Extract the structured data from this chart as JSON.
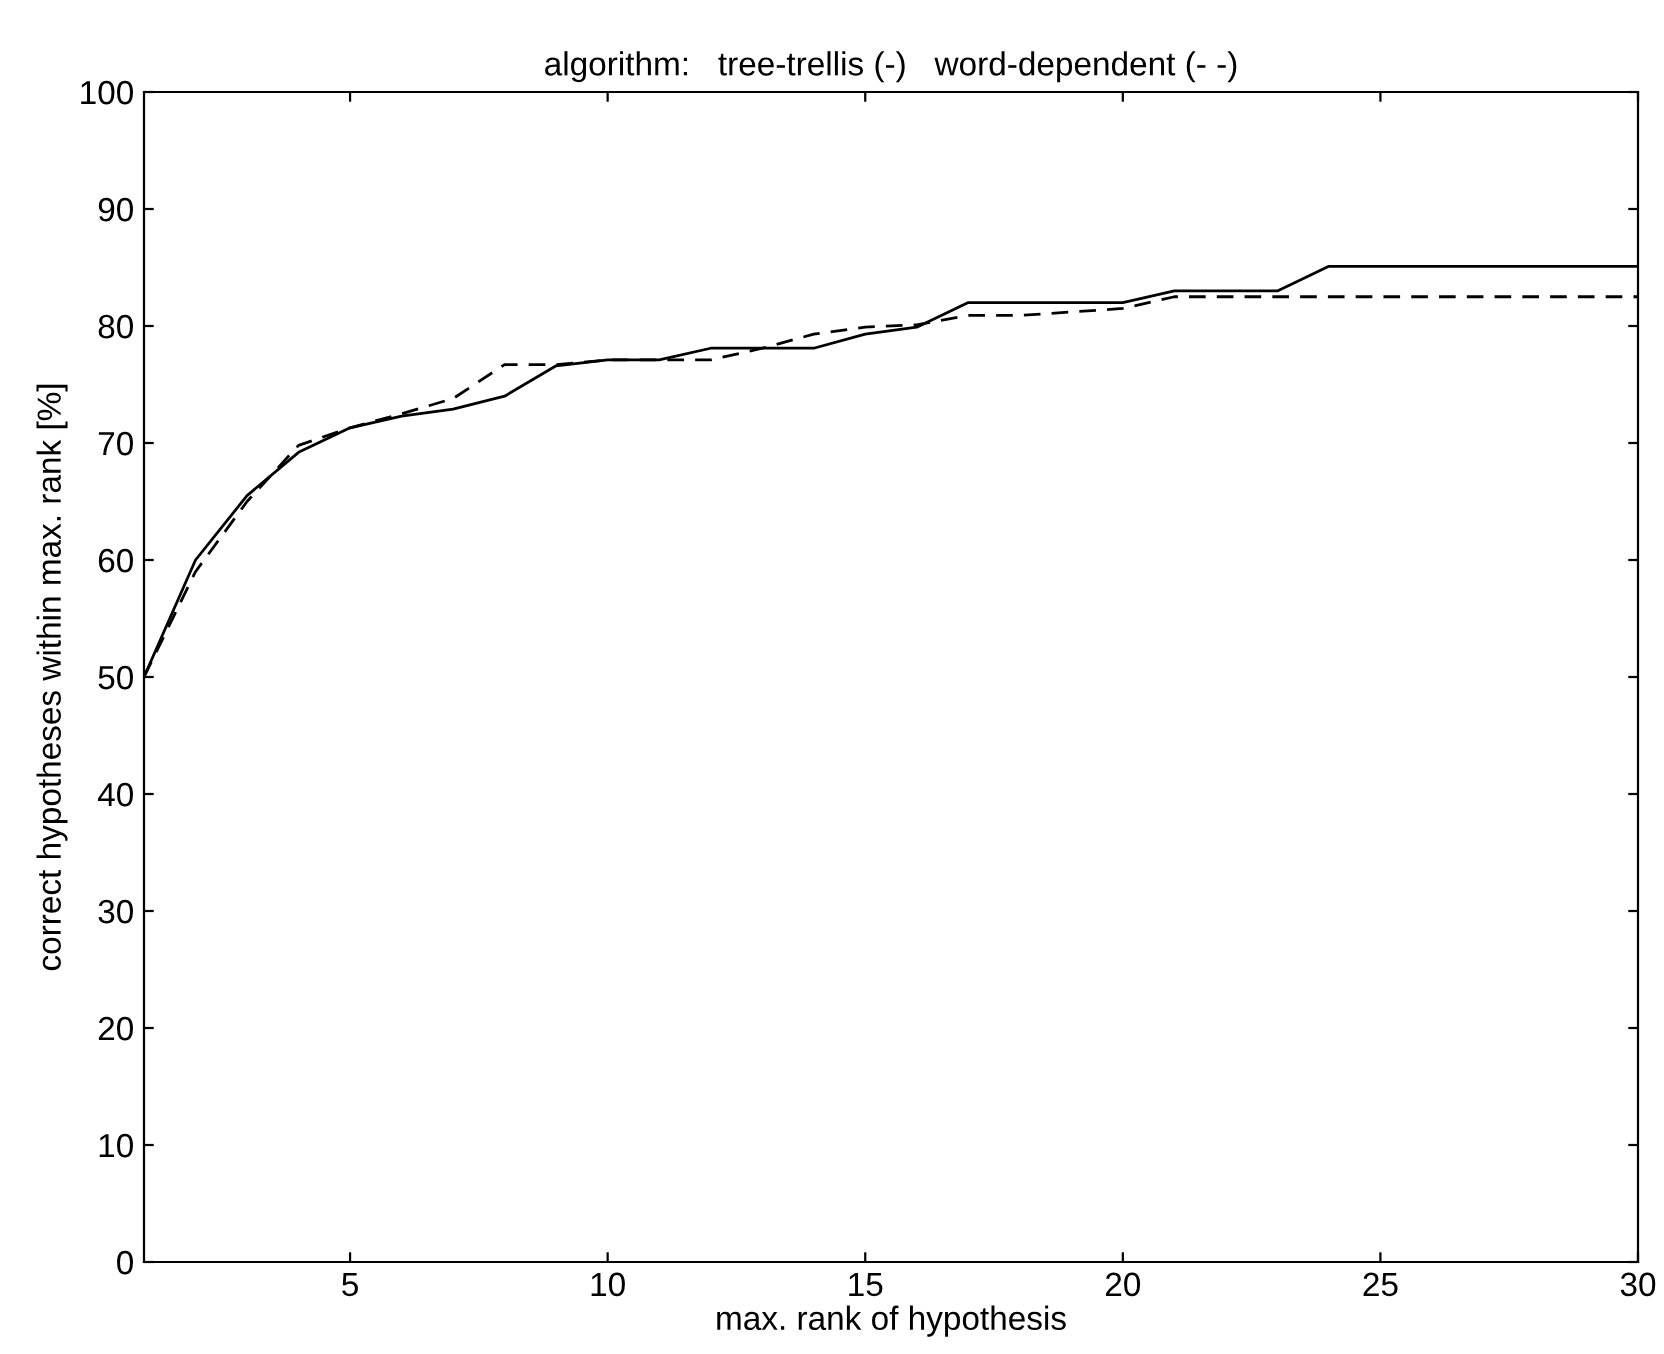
{
  "chart_data": {
    "type": "line",
    "title": "algorithm:   tree-trellis (-)   word-dependent (- -)",
    "xlabel": "max. rank of hypothesis",
    "ylabel": "correct hypotheses within max. rank [%]",
    "x": [
      1,
      2,
      3,
      4,
      5,
      6,
      7,
      8,
      9,
      10,
      11,
      12,
      13,
      14,
      15,
      16,
      17,
      18,
      19,
      20,
      21,
      22,
      23,
      24,
      25,
      26,
      27,
      28,
      29,
      30
    ],
    "series": [
      {
        "color": "#000000",
        "line_style": "solid",
        "values": [
          50,
          60,
          65.5,
          69.2,
          71.3,
          72.3,
          72.9,
          74,
          76.6,
          77.1,
          77.1,
          78.1,
          78.1,
          78.1,
          79.3,
          79.9,
          82,
          82,
          82,
          82,
          83,
          83,
          83,
          85.1,
          85.1,
          85.1,
          85.1,
          85.1,
          85.1,
          85.1
        ]
      },
      {
        "color": "#000000",
        "line_style": "dashed",
        "values": [
          50,
          59,
          65,
          69.8,
          71.3,
          72.5,
          73.8,
          76.7,
          76.7,
          77.1,
          77.1,
          77.1,
          78.1,
          79.3,
          79.9,
          80.1,
          80.9,
          80.9,
          81.2,
          81.5,
          82.5,
          82.5,
          82.5,
          82.5,
          82.5,
          82.5,
          82.5,
          82.5,
          82.5,
          82.5
        ]
      }
    ],
    "xlim": [
      1,
      30
    ],
    "xticks": [
      5,
      10,
      15,
      20,
      25,
      30
    ],
    "ylim": [
      0,
      100
    ],
    "yticks": [
      0,
      10,
      20,
      30,
      40,
      50,
      60,
      70,
      80,
      90,
      100
    ],
    "grid": false,
    "legend": false
  }
}
